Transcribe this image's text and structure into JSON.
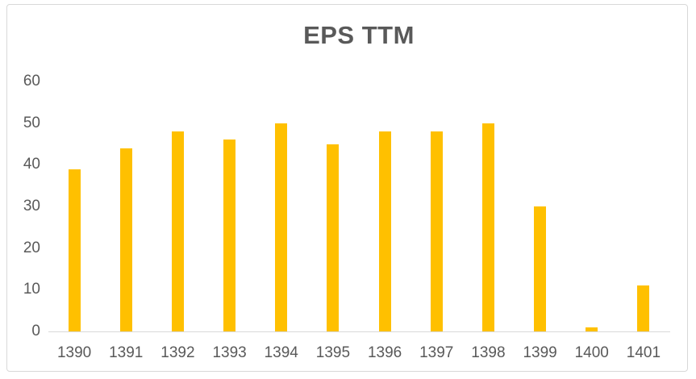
{
  "chart_data": {
    "type": "bar",
    "title": "EPS TTM",
    "categories": [
      "1390",
      "1391",
      "1392",
      "1393",
      "1394",
      "1395",
      "1396",
      "1397",
      "1398",
      "1399",
      "1400",
      "1401"
    ],
    "values": [
      39,
      44,
      48,
      46,
      50,
      45,
      48,
      48,
      50,
      30,
      1,
      11
    ],
    "xlabel": "",
    "ylabel": "",
    "ylim": [
      0,
      60
    ],
    "ytick_step": 10,
    "yticks": [
      "0",
      "10",
      "20",
      "30",
      "40",
      "50",
      "60"
    ],
    "grid": false,
    "legend_position": "none",
    "colors": {
      "bar": "#FFC000",
      "title": "#595959",
      "tick_labels": "#595959",
      "axis_line": "#D9D9D9",
      "frame_border": "#D8D8D8",
      "background": "#FFFFFF"
    }
  }
}
